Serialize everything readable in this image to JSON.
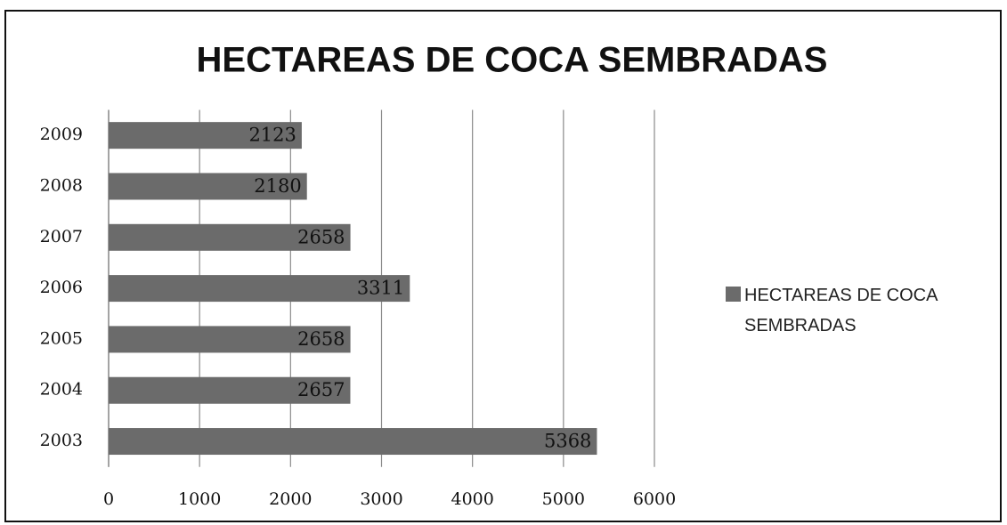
{
  "chart_data": {
    "type": "bar",
    "orientation": "horizontal",
    "title": "HECTAREAS DE COCA SEMBRADAS",
    "categories": [
      "2009",
      "2008",
      "2007",
      "2006",
      "2005",
      "2004",
      "2003"
    ],
    "series": [
      {
        "name": "HECTAREAS DE COCA SEMBRADAS",
        "color": "#6b6b6b",
        "values": [
          2123,
          2180,
          2658,
          3311,
          2658,
          2657,
          5368
        ]
      }
    ],
    "xlim": [
      0,
      6000
    ],
    "xticks": [
      0,
      1000,
      2000,
      3000,
      4000,
      5000,
      6000
    ],
    "grid": true,
    "legend": "right"
  }
}
